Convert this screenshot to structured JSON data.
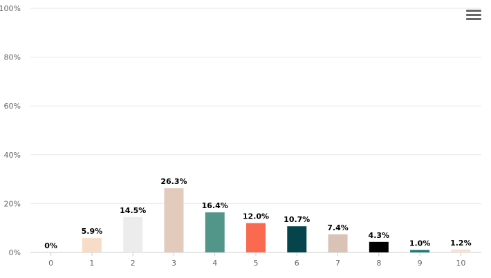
{
  "chart_data": {
    "type": "bar",
    "title": "",
    "xlabel": "",
    "ylabel": "",
    "categories": [
      "0",
      "1",
      "2",
      "3",
      "4",
      "5",
      "6",
      "7",
      "8",
      "9",
      "10"
    ],
    "values": [
      0,
      5.9,
      14.5,
      26.3,
      16.4,
      12.0,
      10.7,
      7.4,
      4.3,
      1.0,
      1.2
    ],
    "data_labels": [
      "0%",
      "5.9%",
      "14.5%",
      "26.3%",
      "16.4%",
      "12.0%",
      "10.7%",
      "7.4%",
      "4.3%",
      "1.0%",
      "1.2%"
    ],
    "bar_colors": [
      "#f7dcc7",
      "#f7dcc7",
      "#ececec",
      "#e2cbbd",
      "#52968a",
      "#f96a50",
      "#05444a",
      "#d8c3b6",
      "#000000",
      "#1a7a72",
      "#f7e1d3"
    ],
    "ylim": [
      0,
      100
    ],
    "yticks": [
      0,
      20,
      40,
      60,
      80,
      100
    ],
    "ytick_labels": [
      "0%",
      "20%",
      "40%",
      "60%",
      "80%",
      "100%"
    ],
    "grid": true,
    "legend": "none"
  },
  "toolbar": {
    "menu_icon": "hamburger-menu-icon"
  }
}
